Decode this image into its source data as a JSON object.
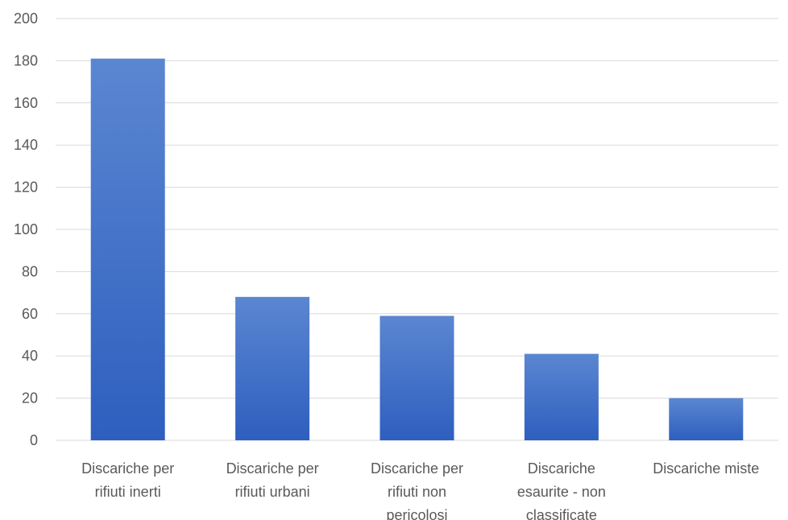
{
  "chart_data": {
    "type": "bar",
    "title": "",
    "xlabel": "",
    "ylabel": "",
    "categories": [
      [
        "Discariche per",
        "rifiuti inerti"
      ],
      [
        "Discariche per",
        "rifiuti urbani"
      ],
      [
        "Discariche per",
        "rifiuti non",
        "pericolosi"
      ],
      [
        "Discariche",
        "esaurite - non",
        "classificate"
      ],
      [
        "Discariche miste"
      ]
    ],
    "values": [
      181,
      68,
      59,
      41,
      20
    ],
    "ylim": [
      0,
      200
    ],
    "yticks": [
      0,
      20,
      40,
      60,
      80,
      100,
      120,
      140,
      160,
      180,
      200
    ],
    "grid": true,
    "legend": "none",
    "colors": {
      "bar_top": "#5b86d1",
      "bar_bottom": "#2e5fbf",
      "grid": "#d9d9d9",
      "text": "#595959"
    }
  }
}
